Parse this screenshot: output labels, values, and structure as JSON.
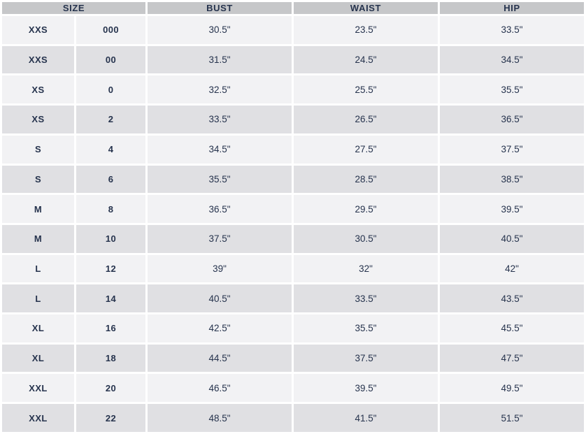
{
  "chart_data": {
    "type": "table",
    "header": {
      "size": "SIZE",
      "bust": "BUST",
      "waist": "WAIST",
      "hip": "HIP"
    },
    "columns": [
      "SIZE (letter)",
      "SIZE (number)",
      "BUST",
      "WAIST",
      "HIP"
    ],
    "rows": [
      {
        "size_letter": "XXS",
        "size_number": "000",
        "bust": "30.5\"",
        "waist": "23.5\"",
        "hip": "33.5\""
      },
      {
        "size_letter": "XXS",
        "size_number": "00",
        "bust": "31.5\"",
        "waist": "24.5\"",
        "hip": "34.5\""
      },
      {
        "size_letter": "XS",
        "size_number": "0",
        "bust": "32.5\"",
        "waist": "25.5\"",
        "hip": "35.5\""
      },
      {
        "size_letter": "XS",
        "size_number": "2",
        "bust": "33.5\"",
        "waist": "26.5\"",
        "hip": "36.5\""
      },
      {
        "size_letter": "S",
        "size_number": "4",
        "bust": "34.5\"",
        "waist": "27.5\"",
        "hip": "37.5\""
      },
      {
        "size_letter": "S",
        "size_number": "6",
        "bust": "35.5\"",
        "waist": "28.5\"",
        "hip": "38.5\""
      },
      {
        "size_letter": "M",
        "size_number": "8",
        "bust": "36.5\"",
        "waist": "29.5\"",
        "hip": "39.5\""
      },
      {
        "size_letter": "M",
        "size_number": "10",
        "bust": "37.5\"",
        "waist": "30.5\"",
        "hip": "40.5\""
      },
      {
        "size_letter": "L",
        "size_number": "12",
        "bust": "39\"",
        "waist": "32\"",
        "hip": "42\""
      },
      {
        "size_letter": "L",
        "size_number": "14",
        "bust": "40.5\"",
        "waist": "33.5\"",
        "hip": "43.5\""
      },
      {
        "size_letter": "XL",
        "size_number": "16",
        "bust": "42.5\"",
        "waist": "35.5\"",
        "hip": "45.5\""
      },
      {
        "size_letter": "XL",
        "size_number": "18",
        "bust": "44.5\"",
        "waist": "37.5\"",
        "hip": "47.5\""
      },
      {
        "size_letter": "XXL",
        "size_number": "20",
        "bust": "46.5\"",
        "waist": "39.5\"",
        "hip": "49.5\""
      },
      {
        "size_letter": "XXL",
        "size_number": "22",
        "bust": "48.5\"",
        "waist": "41.5\"",
        "hip": "51.5\""
      }
    ]
  },
  "colors": {
    "header_bg": "#c6c7c9",
    "row_light_bg": "#f2f2f4",
    "row_dark_bg": "#e0e0e3",
    "gap_bg": "#ffffff",
    "text": "#26334d"
  }
}
